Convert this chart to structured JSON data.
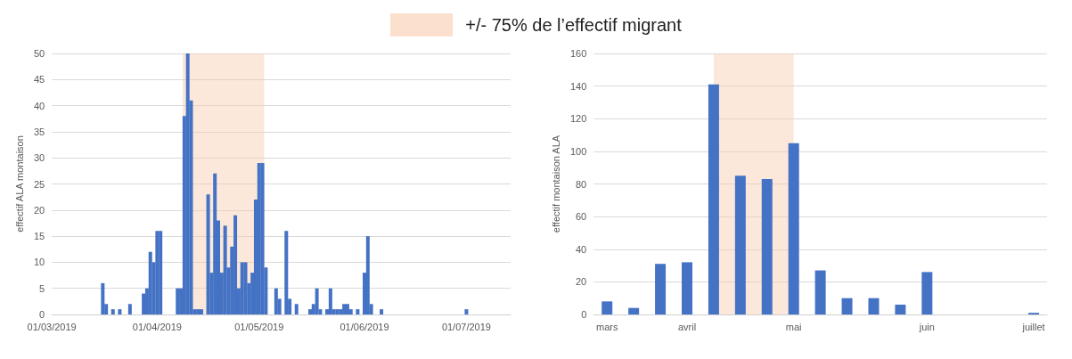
{
  "chart_data": [
    {
      "type": "bar",
      "ylabel": "effectif ALA montaison",
      "color": "#4472c4",
      "grid": "y",
      "x": [
        "2019-03-16",
        "2019-03-17",
        "2019-03-19",
        "2019-03-21",
        "2019-03-24",
        "2019-03-28",
        "2019-03-29",
        "2019-03-30",
        "2019-03-31",
        "2019-04-01",
        "2019-04-02",
        "2019-04-07",
        "2019-04-08",
        "2019-04-09",
        "2019-04-10",
        "2019-04-11",
        "2019-04-12",
        "2019-04-13",
        "2019-04-14",
        "2019-04-16",
        "2019-04-17",
        "2019-04-18",
        "2019-04-19",
        "2019-04-20",
        "2019-04-21",
        "2019-04-22",
        "2019-04-23",
        "2019-04-24",
        "2019-04-25",
        "2019-04-26",
        "2019-04-27",
        "2019-04-28",
        "2019-04-29",
        "2019-04-30",
        "2019-05-01",
        "2019-05-02",
        "2019-05-03",
        "2019-05-06",
        "2019-05-07",
        "2019-05-09",
        "2019-05-10",
        "2019-05-12",
        "2019-05-16",
        "2019-05-17",
        "2019-05-18",
        "2019-05-19",
        "2019-05-21",
        "2019-05-22",
        "2019-05-23",
        "2019-05-24",
        "2019-05-25",
        "2019-05-26",
        "2019-05-27",
        "2019-05-28",
        "2019-05-30",
        "2019-06-01",
        "2019-06-02",
        "2019-06-03",
        "2019-06-06",
        "2019-07-01"
      ],
      "values": [
        6,
        2,
        1,
        1,
        2,
        4,
        5,
        12,
        10,
        16,
        16,
        5,
        5,
        38,
        50,
        41,
        1,
        1,
        1,
        23,
        8,
        27,
        18,
        8,
        17,
        9,
        13,
        19,
        5,
        10,
        10,
        6,
        8,
        22,
        29,
        29,
        9,
        5,
        3,
        16,
        3,
        2,
        1,
        2,
        5,
        1,
        1,
        5,
        1,
        1,
        1,
        2,
        2,
        1,
        1,
        8,
        15,
        2,
        1,
        1
      ],
      "xlim": [
        "2019-03-01",
        "2019-07-14"
      ],
      "xticks": [
        {
          "value": "2019-03-01",
          "label": "01/03/2019"
        },
        {
          "value": "2019-04-01",
          "label": "01/04/2019"
        },
        {
          "value": "2019-05-01",
          "label": "01/05/2019"
        },
        {
          "value": "2019-06-01",
          "label": "01/06/2019"
        },
        {
          "value": "2019-07-01",
          "label": "01/07/2019"
        }
      ],
      "ylim": [
        0,
        50
      ],
      "yticks": [
        0,
        5,
        10,
        15,
        20,
        25,
        30,
        35,
        40,
        45,
        50
      ],
      "bands": [
        {
          "axis": "x",
          "from": "2019-04-08T12:00",
          "to": "2019-05-02T12:00",
          "label": "+/- 75% de l’effectif migrant",
          "color": "#f8cbad"
        }
      ]
    },
    {
      "type": "bar",
      "ylabel": "effectif montaison ALA",
      "color": "#4472c4",
      "grid": "y",
      "categories": [
        "mars",
        null,
        null,
        "avril",
        null,
        null,
        null,
        "mai",
        null,
        null,
        null,
        null,
        "juin",
        null,
        null,
        null,
        "juillet"
      ],
      "values": [
        8,
        4,
        31,
        32,
        141,
        85,
        83,
        105,
        27,
        10,
        10,
        6,
        26,
        0,
        0,
        0,
        1
      ],
      "ylim": [
        0,
        160
      ],
      "yticks": [
        0,
        20,
        40,
        60,
        80,
        100,
        120,
        140,
        160
      ]
    }
  ]
}
